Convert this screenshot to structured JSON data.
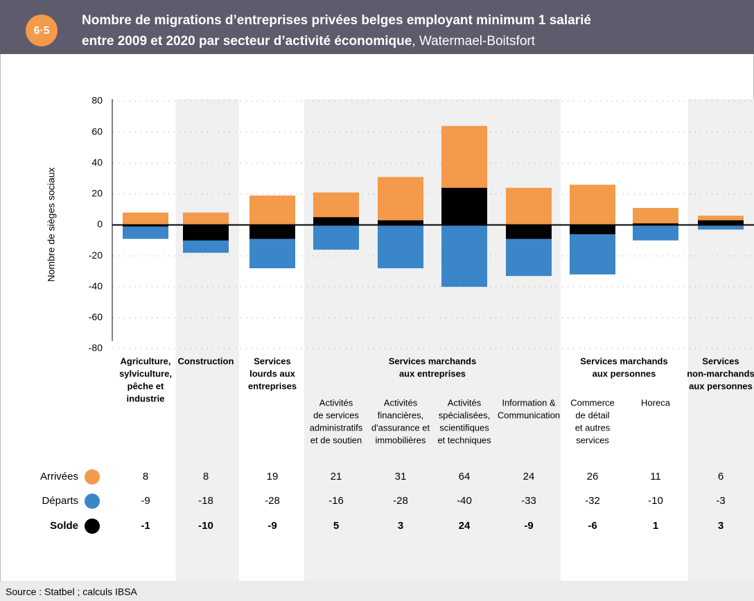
{
  "header": {
    "badge": "6·5",
    "title_bold": [
      "Nombre de migrations d’entreprises privées belges employant minimum 1 salarié",
      "entre 2009 et 2020 par secteur d’activité économique"
    ],
    "title_rest": ", Watermael-Boitsfort"
  },
  "chart_data": {
    "type": "bar",
    "ylabel": "Nombre de sièges sociaux",
    "ylim": [
      -80,
      80
    ],
    "yticks": [
      -80,
      -60,
      -40,
      -20,
      0,
      20,
      40,
      60,
      80
    ],
    "grid": true,
    "categories": [
      [
        "Agriculture,",
        "sylviculture,",
        "pêche et",
        "industrie"
      ],
      [
        "Construction"
      ],
      [
        "Services",
        "lourds aux",
        "entreprises"
      ],
      [
        "Activités",
        "de services",
        "administratifs",
        "et de soutien"
      ],
      [
        "Activités",
        "financières,",
        "d'assurance et",
        "immobilières"
      ],
      [
        "Activités",
        "spécialisées,",
        "scientifiques",
        "et techniques"
      ],
      [
        "Information &",
        "Communication"
      ],
      [
        "Commerce",
        "de détail",
        "et autres",
        "services"
      ],
      [
        "Horeca"
      ],
      [
        "Services",
        "non-marchands",
        "aux personnes"
      ]
    ],
    "groups": [
      {
        "label": [
          "Services marchands",
          "aux entreprises"
        ],
        "start": 3,
        "end": 6
      },
      {
        "label": [
          "Services marchands",
          "aux personnes"
        ],
        "start": 7,
        "end": 8
      }
    ],
    "series": [
      {
        "name": "Arrivées",
        "color": "#f39a4b",
        "values": [
          8,
          8,
          19,
          21,
          31,
          64,
          24,
          26,
          11,
          6
        ]
      },
      {
        "name": "Départs",
        "color": "#3a86c8",
        "values": [
          -9,
          -18,
          -28,
          -16,
          -28,
          -40,
          -33,
          -32,
          -10,
          -3
        ]
      },
      {
        "name": "Solde",
        "color": "#000000",
        "values": [
          -1,
          -10,
          -9,
          5,
          3,
          24,
          -9,
          -6,
          1,
          3
        ]
      }
    ]
  },
  "footer": {
    "source": "Source : Statbel ; calculs IBSA"
  }
}
